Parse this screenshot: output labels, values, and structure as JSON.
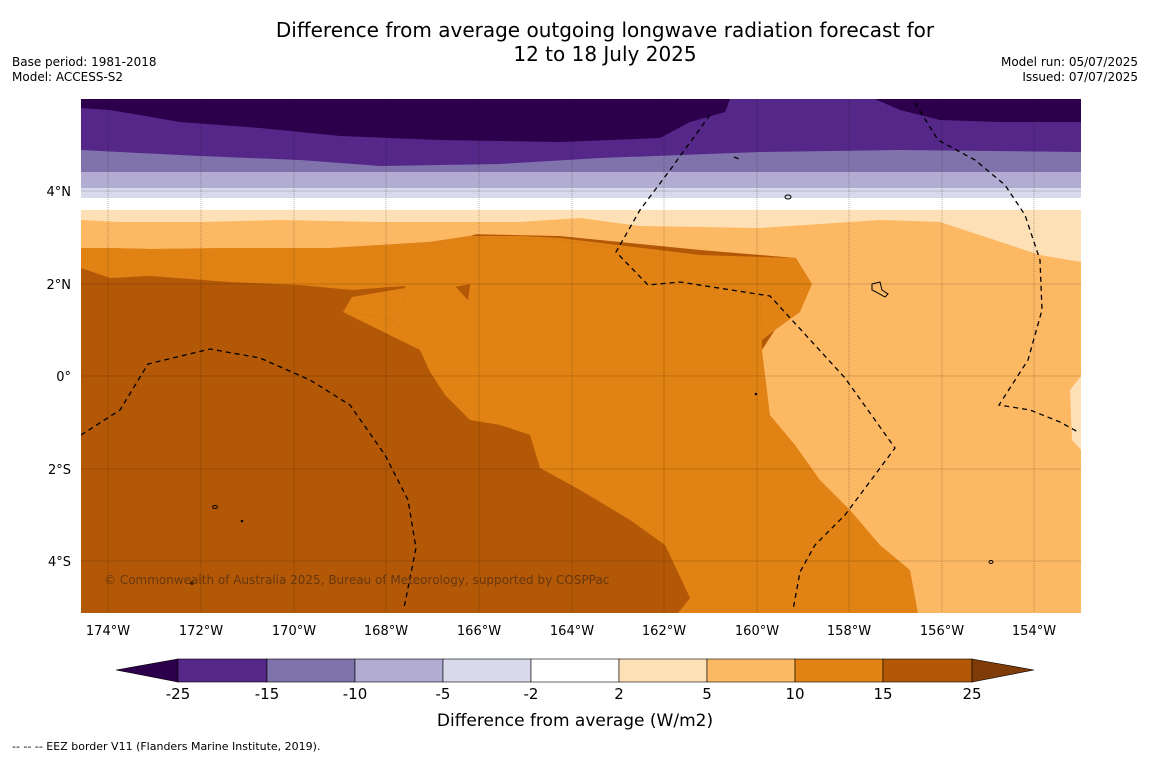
{
  "title": {
    "line1": "Difference from average outgoing longwave radiation forecast for",
    "line2": "12 to 18 July 2025"
  },
  "meta_left": {
    "base_period": "Base period: 1981-2018",
    "model": "Model: ACCESS-S2"
  },
  "meta_right": {
    "model_run": "Model run: 05/07/2025",
    "issued": "Issued: 07/07/2025"
  },
  "map": {
    "lon_labels": [
      "174°W",
      "172°W",
      "170°W",
      "168°W",
      "166°W",
      "164°W",
      "162°W",
      "160°W",
      "158°W",
      "156°W",
      "154°W"
    ],
    "lat_labels": [
      "4°N",
      "2°N",
      "0°",
      "2°S",
      "4°S"
    ],
    "copyright": "© Commonwealth of Australia 2025, Bureau of Meteorology, supported by COSPPac"
  },
  "colorbar": {
    "ticks": [
      "-25",
      "-15",
      "-10",
      "-5",
      "-2",
      "2",
      "5",
      "10",
      "15",
      "25"
    ],
    "colors": [
      "#2d004b",
      "#542788",
      "#8073ac",
      "#b2abd2",
      "#d8daeb",
      "#ffffff",
      "#fee0b6",
      "#fdb863",
      "#e08214",
      "#b35806",
      "#7f3b08"
    ],
    "label": "Difference from average (W/m2)"
  },
  "footnote": "--  --  -- EEZ border V11 (Flanders Marine Institute, 2019)."
}
